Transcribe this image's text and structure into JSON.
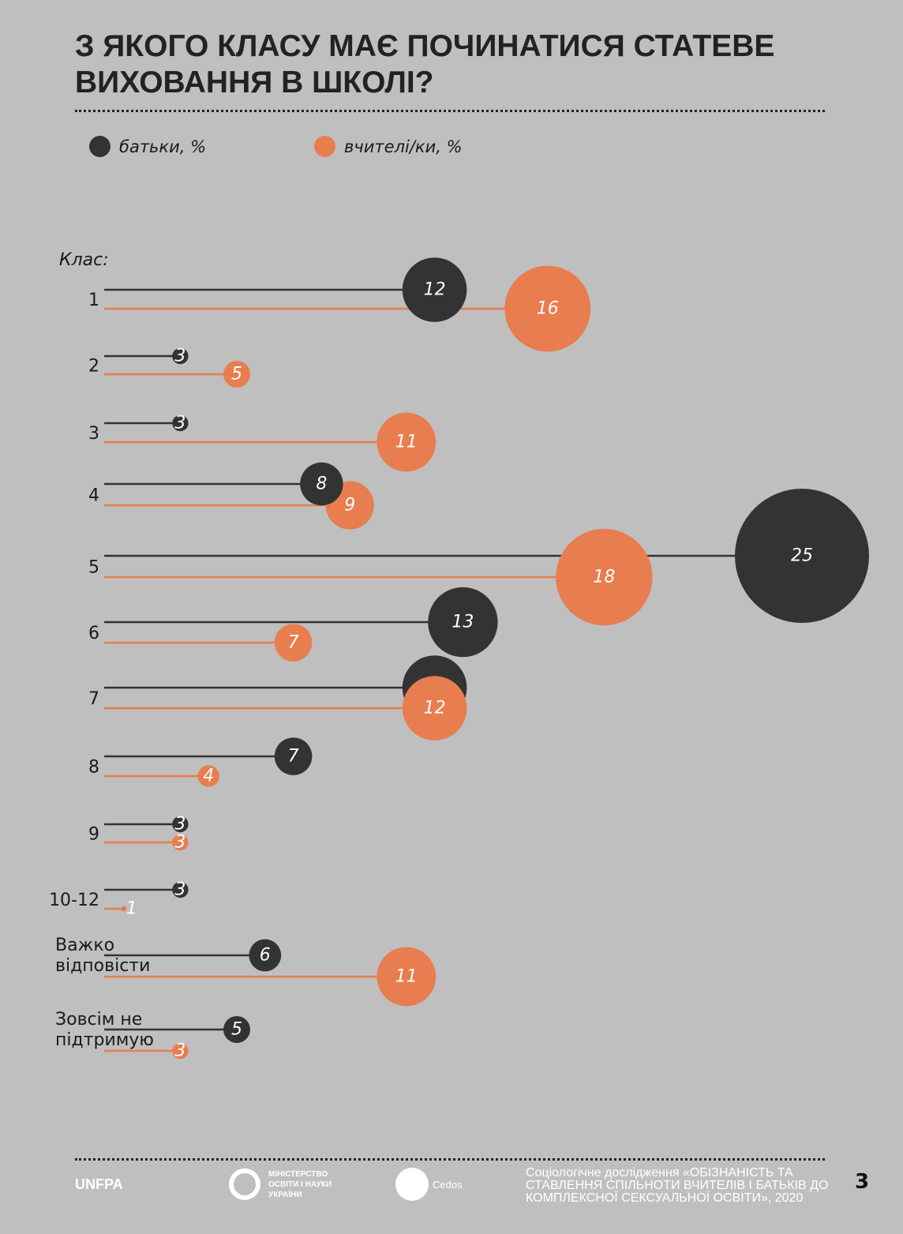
{
  "chart_data": {
    "type": "bubble-lollipop",
    "title": "З ЯКОГО КЛАСУ МАЄ ПОЧИНАТИСЯ СТАТЕВЕ ВИХОВАННЯ В ШКОЛІ?",
    "ylabel": "Клас:",
    "categories": [
      "1",
      "2",
      "3",
      "4",
      "5",
      "6",
      "7",
      "8",
      "9",
      "10-12",
      "Важко відповісти",
      "Зовсім не підтримую"
    ],
    "series": [
      {
        "name": "батьки, %",
        "color": "#333333",
        "values": [
          12,
          3,
          3,
          8,
          25,
          13,
          12,
          7,
          3,
          3,
          6,
          5
        ]
      },
      {
        "name": "вчителі/ки, %",
        "color": "#e87d4f",
        "values": [
          16,
          5,
          11,
          9,
          18,
          7,
          12,
          4,
          3,
          1,
          11,
          3
        ]
      }
    ]
  },
  "footer": {
    "source": "Соціологічне дослідження «ОБІЗНАНІСТЬ ТА СТАВЛЕННЯ СПІЛЬНОТИ ВЧИТЕЛІВ І БАТЬКІВ ДО КОМПЛЕКСНОЇ СЕКСУАЛЬНОЇ ОСВІТИ», 2020",
    "page": "3",
    "logos": [
      "UNFPA",
      "МІНІСТЕРСТВО ОСВІТИ І НАУКИ УКРАЇНИ",
      "Cedos"
    ]
  }
}
